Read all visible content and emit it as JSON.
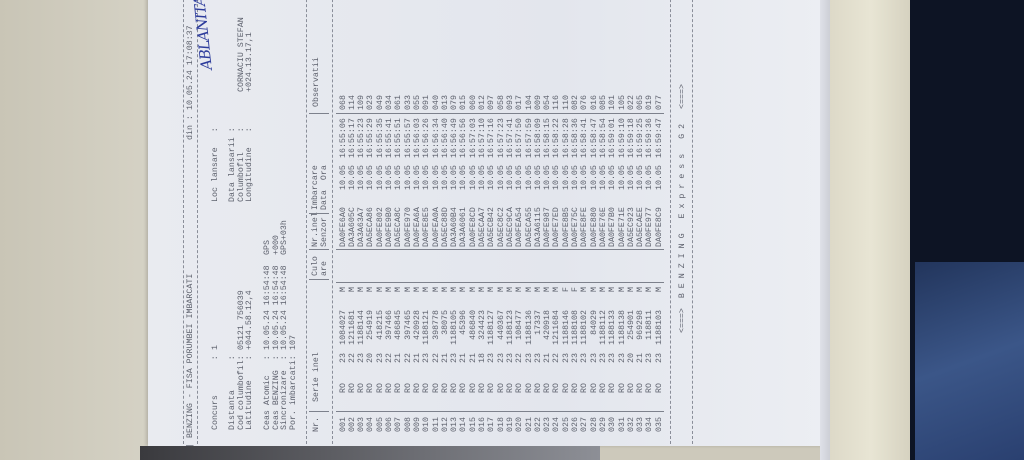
{
  "header": {
    "title": "BENZING - FISA PORUMBEI IMBARCATI",
    "din_label": "din :",
    "din_value": "10.05.24 17:08:37"
  },
  "info": {
    "concurs_label": "Concurs       :",
    "concurs_value": "1",
    "distanta_label": "Distanta      :",
    "distanta_value": "",
    "cod_label": "Cod columbofil:",
    "cod_value": "05121 756039",
    "latitudine_label": "Latitudine    :",
    "latitudine_value": "+044.58.12,4",
    "loc_label": "Loc lansare   :",
    "loc_value_handwritten": "ABLANITA",
    "data_lansarii_label": "Data lansarii :",
    "data_lansarii_value": "",
    "columbofil_label": "Columbofil    :",
    "columbofil_value": "CORNACIU STEFAN",
    "longitudine_label": "Longitudine   :",
    "longitudine_value": "+024.13.17,1",
    "ceas_atomic_label": "Ceas Atomic   :",
    "ceas_atomic_value": "10.05.24 16:54:48",
    "ceas_atomic_note": "GPS",
    "ceas_benzing_label": "Ceas BENZING  :",
    "ceas_benzing_value": "10.05.24 16:54:48",
    "ceas_benzing_note": "+000",
    "sincronizare_label": "Sincronizare  :",
    "sincronizare_value": "10.05.24 16:54:48",
    "sincronizare_note": "GPS+03h",
    "porumbei_label": "Por. imbarcati:",
    "porumbei_value": "107"
  },
  "columns": {
    "nr": "Nr.",
    "serie": "Serie inel",
    "culoare_1": "Culo",
    "culoare_2": "are",
    "senzor_1": "Nr.inel",
    "senzor_2": "Senzor",
    "imbarcare_1": "Imbarcare",
    "imbarcare_2": "Data  Ora",
    "observatii": "Observatii"
  },
  "rows": [
    [
      "001",
      "RO",
      "23",
      "1084027",
      "M",
      "DA0FE6A0",
      "10.05",
      "16:55:06",
      "068"
    ],
    [
      "002",
      "RO",
      "22",
      "1211681",
      "M",
      "DA3A605C",
      "10.05",
      "16:55:17",
      "114"
    ],
    [
      "003",
      "RO",
      "23",
      "1188144",
      "M",
      "DA3A63A7",
      "10.05",
      "16:55:23",
      "109"
    ],
    [
      "004",
      "RO",
      "20",
      "254919",
      "M",
      "DA5ECA86",
      "10.05",
      "16:55:29",
      "023"
    ],
    [
      "005",
      "RO",
      "23",
      "418215",
      "M",
      "DA0FE802",
      "10.05",
      "16:55:35",
      "049"
    ],
    [
      "006",
      "RO",
      "22",
      "397466",
      "M",
      "DA0FE9B0",
      "10.05",
      "16:55:41",
      "034"
    ],
    [
      "007",
      "RO",
      "21",
      "486845",
      "M",
      "DA5ECA8C",
      "10.05",
      "16:55:51",
      "061"
    ],
    [
      "008",
      "RO",
      "22",
      "397465",
      "M",
      "DA0FE970",
      "10.05",
      "16:55:57",
      "033"
    ],
    [
      "009",
      "RO",
      "21",
      "420928",
      "M",
      "DA0FEA6A",
      "10.05",
      "16:56:03",
      "055"
    ],
    [
      "010",
      "RO",
      "23",
      "1188121",
      "M",
      "DA0FE8E5",
      "10.05",
      "16:56:26",
      "091"
    ],
    [
      "011",
      "RO",
      "22",
      "398778",
      "M",
      "DA0FEA0A",
      "10.05",
      "16:56:34",
      "040"
    ],
    [
      "012",
      "RO",
      "21",
      "38075",
      "M",
      "DA5EC88D",
      "10.05",
      "16:56:40",
      "013"
    ],
    [
      "013",
      "RO",
      "23",
      "1188105",
      "M",
      "DA3A60B4",
      "10.05",
      "16:56:49",
      "079"
    ],
    [
      "014",
      "RO",
      "21",
      "45396",
      "M",
      "DA3A6061",
      "10.05",
      "16:56:56",
      "015"
    ],
    [
      "015",
      "RO",
      "21",
      "486840",
      "M",
      "DA0FE8CD",
      "10.05",
      "16:57:03",
      "060"
    ],
    [
      "016",
      "RO",
      "18",
      "324423",
      "M",
      "DA5ECAA7",
      "10.05",
      "16:57:10",
      "012"
    ],
    [
      "017",
      "RO",
      "23",
      "1188127",
      "M",
      "DA5ECB42",
      "10.05",
      "16:57:16",
      "097"
    ],
    [
      "018",
      "RO",
      "23",
      "440367",
      "M",
      "DA5EC8C2",
      "10.05",
      "16:57:23",
      "058"
    ],
    [
      "019",
      "RO",
      "23",
      "1188123",
      "M",
      "DA5EC9CA",
      "10.05",
      "16:57:41",
      "093"
    ],
    [
      "020",
      "RO",
      "22",
      "108477",
      "M",
      "DA0FEA54",
      "10.05",
      "16:57:50",
      "017"
    ],
    [
      "021",
      "RO",
      "23",
      "1188136",
      "M",
      "DA5ECA55",
      "10.05",
      "16:57:59",
      "104"
    ],
    [
      "022",
      "RO",
      "23",
      "17337",
      "M",
      "DA3A6115",
      "10.05",
      "16:58:09",
      "009"
    ],
    [
      "023",
      "RO",
      "21",
      "420918",
      "M",
      "DA0FE987",
      "10.05",
      "16:58:15",
      "054"
    ],
    [
      "024",
      "RO",
      "22",
      "1211684",
      "M",
      "DA0FE7ED",
      "10.05",
      "16:58:22",
      "116"
    ],
    [
      "025",
      "RO",
      "23",
      "1188146",
      "F",
      "DA0FE8B5",
      "10.05",
      "16:58:28",
      "110"
    ],
    [
      "026",
      "RO",
      "23",
      "1188108",
      "F",
      "DA0FE75C",
      "10.05",
      "16:58:36",
      "082"
    ],
    [
      "027",
      "RO",
      "23",
      "1188102",
      "M",
      "DA0FE8FE",
      "10.05",
      "16:58:41",
      "076"
    ],
    [
      "028",
      "RO",
      "23",
      "84029",
      "M",
      "DA0FE880",
      "10.05",
      "16:58:47",
      "016"
    ],
    [
      "029",
      "RO",
      "23",
      "1188112",
      "M",
      "DA0FE76E",
      "10.05",
      "16:58:54",
      "085"
    ],
    [
      "030",
      "RO",
      "23",
      "1188133",
      "M",
      "DA0FE7B0",
      "10.05",
      "16:59:01",
      "101"
    ],
    [
      "031",
      "RO",
      "23",
      "1188138",
      "M",
      "DA0FE71E",
      "10.05",
      "16:59:10",
      "105"
    ],
    [
      "032",
      "RO",
      "20",
      "254901",
      "M",
      "DA5EC923",
      "10.05",
      "16:59:18",
      "022"
    ],
    [
      "033",
      "RO",
      "21",
      "969298",
      "M",
      "DA5ECAEE",
      "10.05",
      "16:59:25",
      "065"
    ],
    [
      "034",
      "RO",
      "23",
      "118811",
      "M",
      "DA0FE977",
      "10.05",
      "16:59:36",
      "019"
    ],
    [
      "035",
      "RO",
      "23",
      "1188103",
      "M",
      "DA0FE8C9",
      "10.05",
      "16:59:47",
      "077"
    ]
  ],
  "footer": "<===>  B E N Z I N G   E x p r e s s   G 2   <===>",
  "colors": {
    "paper": "#e6e8ee",
    "print": "#5d616d",
    "ink": "#2d3c9c"
  }
}
